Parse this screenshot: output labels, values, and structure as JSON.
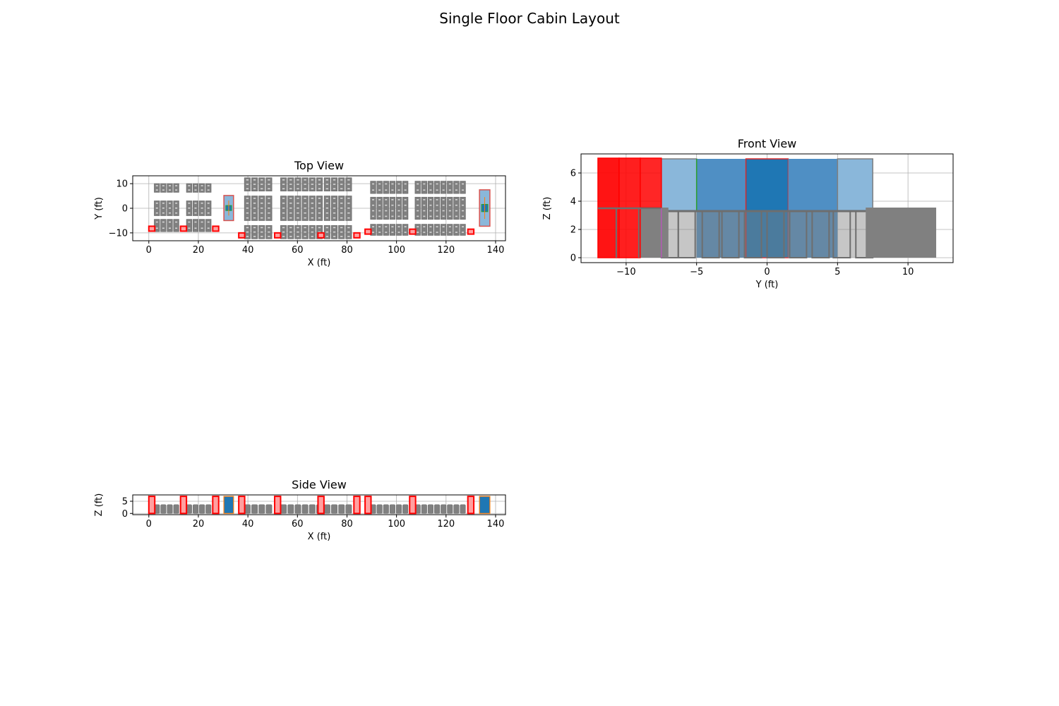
{
  "figure": {
    "title": "Single Floor Cabin Layout"
  },
  "colors": {
    "seat": "#808080",
    "seat_edge": "#6e6e6e",
    "door": "#ff0000",
    "door_fill": "#ffa0a0",
    "galley": "#1f77b4",
    "galley_light": "#8ab7da",
    "galley_edge": "#7f7f7f",
    "grid": "#b0b0b0"
  },
  "chart_data": [
    {
      "id": "top",
      "type": "scatter",
      "title": "Top View",
      "xlabel": "X (ft)",
      "ylabel": "Y (ft)",
      "xlim": [
        -6.5,
        144
      ],
      "ylim": [
        -13.2,
        13.2
      ],
      "xticks": [
        0,
        20,
        40,
        60,
        80,
        100,
        120,
        140
      ],
      "yticks": [
        -10,
        0,
        10
      ],
      "grid": true,
      "seat_blocks": [
        {
          "x0": 2.2,
          "pitch": 2.6,
          "n": 4,
          "rows": [
            [
              6.5,
              10
            ],
            [
              -3,
              3
            ],
            [
              -9.5,
              -4.5
            ]
          ]
        },
        {
          "x0": 15.2,
          "pitch": 2.6,
          "n": 4,
          "rows": [
            [
              6.5,
              10
            ],
            [
              -3,
              3
            ],
            [
              -9.5,
              -4.5
            ]
          ]
        },
        {
          "x0": 38.6,
          "pitch": 2.9,
          "n": 4,
          "rows": [
            [
              7,
              12.4
            ],
            [
              -5,
              5
            ],
            [
              -12.4,
              -7
            ]
          ]
        },
        {
          "x0": 53.2,
          "pitch": 2.9,
          "n": 6,
          "rows": [
            [
              7,
              12.4
            ],
            [
              -5,
              5
            ],
            [
              -12.4,
              -7
            ]
          ]
        },
        {
          "x0": 70.8,
          "pitch": 2.9,
          "n": 4,
          "rows": [
            [
              7,
              12.4
            ],
            [
              -5,
              5
            ],
            [
              -12.4,
              -7
            ]
          ]
        },
        {
          "x0": 89.5,
          "pitch": 2.6,
          "n": 6,
          "rows": [
            [
              6,
              11
            ],
            [
              -4.5,
              4.5
            ],
            [
              -11,
              -6.5
            ]
          ]
        },
        {
          "x0": 107.5,
          "pitch": 2.6,
          "n": 8,
          "rows": [
            [
              6,
              11
            ],
            [
              -4.5,
              4.5
            ],
            [
              -11,
              -6.5
            ]
          ]
        }
      ],
      "doors": [
        {
          "x": 1.2,
          "y": -8.3
        },
        {
          "x": 14.0,
          "y": -8.3
        },
        {
          "x": 27.0,
          "y": -8.3
        },
        {
          "x": 37.5,
          "y": -11
        },
        {
          "x": 52.0,
          "y": -11
        },
        {
          "x": 69.5,
          "y": -11
        },
        {
          "x": 84.0,
          "y": -11
        },
        {
          "x": 88.5,
          "y": -9.5
        },
        {
          "x": 106.5,
          "y": -9.5
        },
        {
          "x": 130.0,
          "y": -9.5
        }
      ],
      "galleys": [
        {
          "x0": 30.3,
          "x1": 34.2,
          "y0": -5,
          "y1": 5.2
        },
        {
          "x0": 133.5,
          "x1": 137.7,
          "y0": -7.3,
          "y1": 7.5
        }
      ]
    },
    {
      "id": "front",
      "type": "bar",
      "title": "Front View",
      "xlabel": "Y (ft)",
      "ylabel": "Z (ft)",
      "xlim": [
        -13.2,
        13.2
      ],
      "ylim": [
        -0.35,
        7.35
      ],
      "xticks": [
        -10,
        -5,
        0,
        5,
        10
      ],
      "yticks": [
        0,
        2,
        4,
        6
      ],
      "grid": true
    },
    {
      "id": "side",
      "type": "bar",
      "title": "Side View",
      "xlabel": "X (ft)",
      "ylabel": "Z (ft)",
      "xlim": [
        -6.5,
        144
      ],
      "ylim": [
        -0.5,
        7.6
      ],
      "xticks": [
        0,
        20,
        40,
        60,
        80,
        100,
        120,
        140
      ],
      "yticks": [
        0,
        5
      ],
      "grid": true
    }
  ]
}
